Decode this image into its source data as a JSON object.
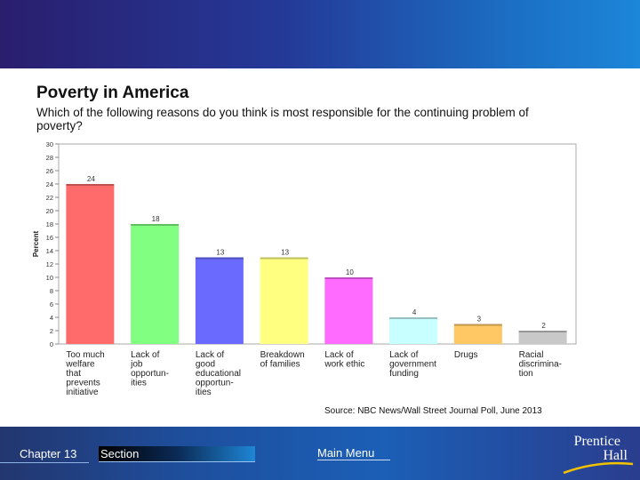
{
  "chart_data": {
    "type": "bar",
    "title": "Poverty in America",
    "subtitle": "Which of the following reasons do you think is most responsible for the continuing problem of poverty?",
    "ylabel": "Percent",
    "xlabel": "",
    "ylim": [
      0,
      30
    ],
    "yticks": [
      0,
      2,
      4,
      6,
      8,
      10,
      12,
      14,
      16,
      18,
      20,
      22,
      24,
      26,
      28,
      30
    ],
    "categories": [
      [
        "Too much",
        "welfare",
        "that",
        "prevents",
        "initiative"
      ],
      [
        "Lack of",
        "job",
        "opportun-",
        "ities"
      ],
      [
        "Lack of",
        "good",
        "educational",
        "opportun-",
        "ities"
      ],
      [
        "Breakdown",
        "of families"
      ],
      [
        "Lack of",
        "work ethic"
      ],
      [
        "Lack of",
        "government",
        "funding"
      ],
      [
        "Drugs"
      ],
      [
        "Racial",
        "discrimina-",
        "tion"
      ]
    ],
    "values": [
      24,
      18,
      13,
      13,
      10,
      4,
      3,
      2
    ],
    "value_labels": [
      "24",
      "18",
      "13",
      "13",
      "10",
      "4",
      "3",
      "2"
    ],
    "colors": [
      "#ff6a6a",
      "#80ff80",
      "#6a6aff",
      "#ffff80",
      "#ff6aff",
      "#c8ffff",
      "#ffc864",
      "#c8c8c8"
    ],
    "source": "Source: NBC News/Wall Street Journal Poll, June 2013"
  },
  "footer": {
    "chapter": "Chapter 13",
    "section": "Section",
    "main_menu": "Main Menu",
    "logo_line1": "Prentice",
    "logo_line2": "Hall"
  }
}
